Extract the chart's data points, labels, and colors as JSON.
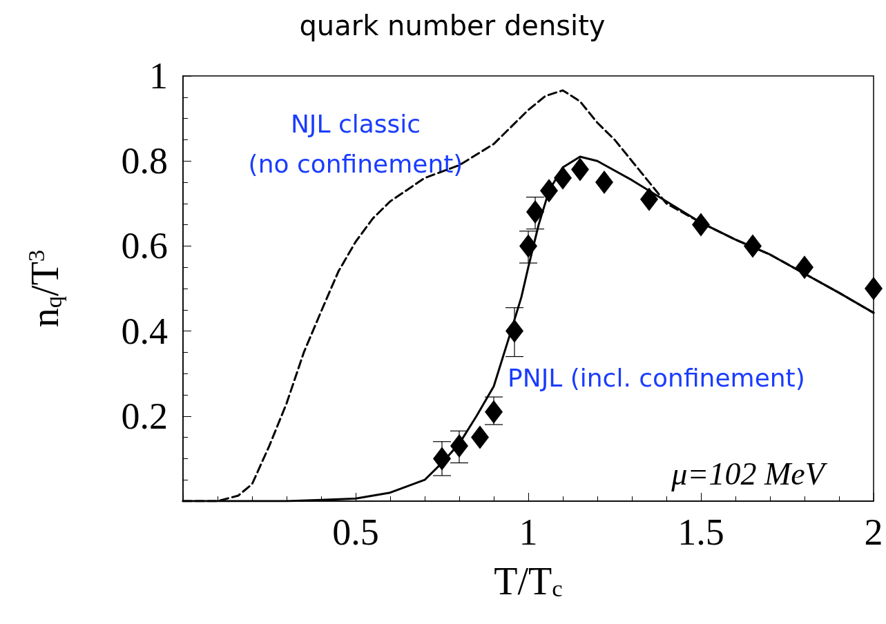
{
  "chart_data": {
    "type": "line",
    "title": "quark number density",
    "xlabel": "T/T$_{c}$",
    "ylabel": "n$_{q}$/T$^{3}$",
    "xlim": [
      0,
      2
    ],
    "xticks": [
      0.5,
      1,
      1.5,
      2
    ],
    "ylim": [
      0,
      1
    ],
    "yticks": [
      0.2,
      0.4,
      0.6,
      0.8,
      1
    ],
    "grid": false,
    "legend": false,
    "series": [
      {
        "name": "NJL classic (no confinement)",
        "line_style": "dashed",
        "marker": "none",
        "color": "#000000",
        "x": [
          0,
          0.1,
          0.16,
          0.2,
          0.25,
          0.3,
          0.35,
          0.4,
          0.45,
          0.5,
          0.55,
          0.6,
          0.7,
          0.8,
          0.9,
          1.0,
          1.05,
          1.1,
          1.15,
          1.2,
          1.25,
          1.3,
          1.4,
          1.5,
          1.6,
          1.7,
          1.8,
          1.9,
          2.0
        ],
        "values": [
          0,
          0,
          0.013,
          0.04,
          0.13,
          0.23,
          0.35,
          0.446,
          0.54,
          0.61,
          0.665,
          0.705,
          0.76,
          0.79,
          0.84,
          0.92,
          0.953,
          0.966,
          0.94,
          0.89,
          0.85,
          0.8,
          0.7,
          0.655,
          0.615,
          0.58,
          0.535,
          0.49,
          0.443
        ]
      },
      {
        "name": "PNJL (incl. confinement)",
        "line_style": "solid",
        "marker": "none",
        "color": "#000000",
        "x": [
          0,
          0.3,
          0.4,
          0.5,
          0.6,
          0.7,
          0.75,
          0.8,
          0.85,
          0.9,
          0.95,
          0.98,
          1.0,
          1.03,
          1.06,
          1.1,
          1.15,
          1.2,
          1.3,
          1.4,
          1.5,
          1.6,
          1.7,
          1.8,
          1.9,
          2.0
        ],
        "values": [
          0,
          0,
          0.003,
          0.006,
          0.02,
          0.05,
          0.09,
          0.135,
          0.2,
          0.27,
          0.4,
          0.48,
          0.55,
          0.65,
          0.73,
          0.785,
          0.81,
          0.8,
          0.755,
          0.705,
          0.655,
          0.615,
          0.58,
          0.535,
          0.49,
          0.443
        ]
      },
      {
        "type": "scatter",
        "marker": "diamond",
        "color": "#000000",
        "x": [
          0.75,
          0.8,
          0.86,
          0.9,
          0.96,
          1.0,
          1.02,
          1.06,
          1.1,
          1.15,
          1.22,
          1.35,
          1.5,
          1.65,
          1.8,
          2.0
        ],
        "values": [
          0.1,
          0.13,
          0.15,
          0.21,
          0.4,
          0.6,
          0.68,
          0.73,
          0.76,
          0.78,
          0.75,
          0.71,
          0.65,
          0.6,
          0.55,
          0.5
        ],
        "errors": [
          [
            0.06,
            0.14
          ],
          [
            0.09,
            0.165
          ],
          null,
          [
            0.18,
            0.245
          ],
          [
            0.34,
            0.455
          ],
          [
            0.56,
            0.635
          ],
          [
            0.64,
            0.715
          ],
          null,
          null,
          null,
          null,
          null,
          null,
          null,
          null,
          null
        ]
      }
    ],
    "annotations": [
      "μ=102 MeV"
    ]
  }
}
